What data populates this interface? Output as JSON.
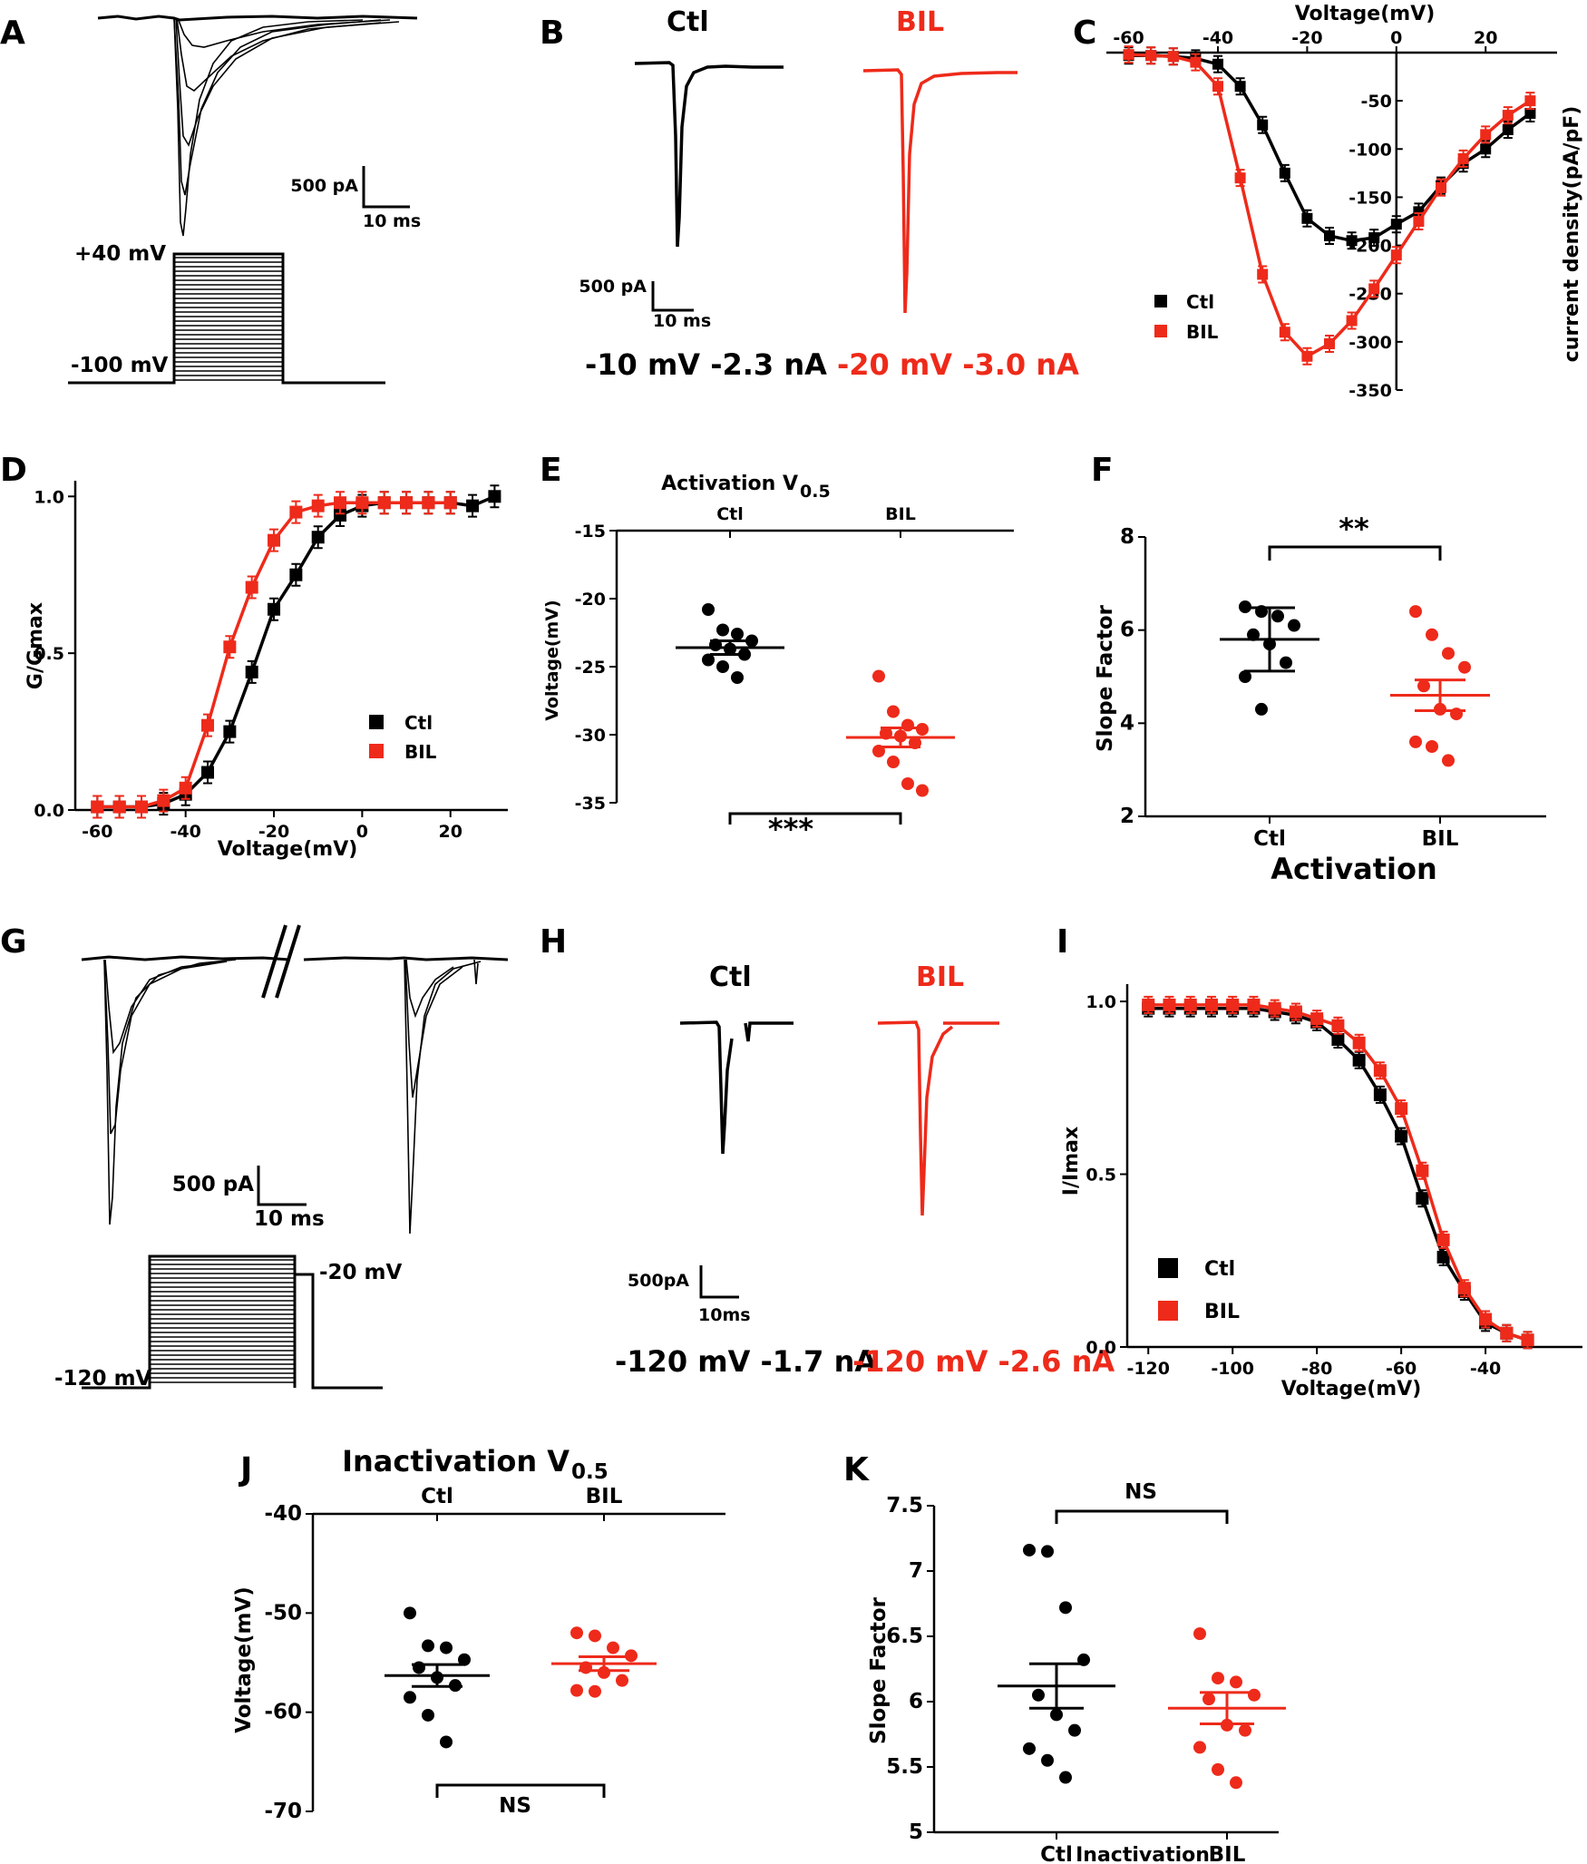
{
  "colors": {
    "ctl": "#000000",
    "bil": "#ee2a1a"
  },
  "labels": {
    "A": "A",
    "B": "B",
    "C": "C",
    "D": "D",
    "E": "E",
    "F": "F",
    "G": "G",
    "H": "H",
    "I": "I",
    "J": "J",
    "K": "K"
  },
  "panelA": {
    "scale_pa": "500 pA",
    "scale_ms": "10 ms",
    "v_high": "+40 mV",
    "v_low": "-100 mV"
  },
  "panelB": {
    "title_ctl": "Ctl",
    "title_bil": "BIL",
    "scale_pa": "500 pA",
    "scale_ms": "10 ms",
    "caption_ctl": "-10 mV -2.3 nA",
    "caption_bil": "-20 mV -3.0 nA"
  },
  "panelG": {
    "scale_pa": "500 pA",
    "scale_ms": "10 ms",
    "v_test": "-20 mV",
    "v_hold": "-120 mV"
  },
  "panelH": {
    "title_ctl": "Ctl",
    "title_bil": "BIL",
    "scale_pa": "500pA",
    "scale_ms": "10ms",
    "caption_ctl": "-120 mV -1.7 nA",
    "caption_bil": "-120 mV -2.6 nA"
  },
  "chart_data": [
    {
      "panel": "C",
      "type": "line",
      "xlabel": "Voltage(mV)",
      "ylabel": "current density(pA/pF)",
      "xlim": [
        -65,
        35
      ],
      "ylim": [
        -350,
        0
      ],
      "xticks": [
        -60,
        -40,
        -20,
        0,
        20
      ],
      "yticks": [
        -50,
        -100,
        -150,
        -200,
        -250,
        -300,
        -350
      ],
      "legend": [
        "Ctl",
        "BIL"
      ],
      "legend_position": "bottom-left",
      "series": [
        {
          "name": "Ctl",
          "x": [
            -60,
            -55,
            -50,
            -45,
            -40,
            -35,
            -30,
            -25,
            -20,
            -15,
            -10,
            -5,
            0,
            5,
            10,
            15,
            20,
            25,
            30
          ],
          "y": [
            -3,
            -3,
            -4,
            -6,
            -12,
            -35,
            -75,
            -125,
            -172,
            -190,
            -195,
            -192,
            -178,
            -165,
            -138,
            -115,
            -100,
            -80,
            -63
          ]
        },
        {
          "name": "BIL",
          "x": [
            -60,
            -55,
            -50,
            -45,
            -40,
            -35,
            -30,
            -25,
            -20,
            -15,
            -10,
            -5,
            0,
            5,
            10,
            15,
            20,
            25,
            30
          ],
          "y": [
            -2,
            -3,
            -4,
            -10,
            -35,
            -130,
            -230,
            -290,
            -315,
            -302,
            -278,
            -245,
            -210,
            -175,
            -140,
            -110,
            -85,
            -65,
            -50
          ]
        }
      ]
    },
    {
      "panel": "D",
      "type": "line",
      "xlabel": "Voltage(mV)",
      "ylabel": "G/Gmax",
      "xlim": [
        -65,
        33
      ],
      "ylim": [
        0,
        1.05
      ],
      "xticks": [
        -60,
        -40,
        -20,
        0,
        20
      ],
      "yticks": [
        0.0,
        0.5,
        1.0
      ],
      "legend": [
        "Ctl",
        "BIL"
      ],
      "legend_position": "bottom-right",
      "series": [
        {
          "name": "Ctl",
          "x": [
            -60,
            -55,
            -50,
            -45,
            -40,
            -35,
            -30,
            -25,
            -20,
            -15,
            -10,
            -5,
            0,
            5,
            10,
            15,
            20,
            25,
            30
          ],
          "y": [
            0.01,
            0.01,
            0.01,
            0.02,
            0.05,
            0.12,
            0.25,
            0.44,
            0.64,
            0.75,
            0.87,
            0.94,
            0.97,
            0.98,
            0.98,
            0.98,
            0.98,
            0.97,
            1.0
          ]
        },
        {
          "name": "BIL",
          "x": [
            -60,
            -55,
            -50,
            -45,
            -40,
            -35,
            -30,
            -25,
            -20,
            -15,
            -10,
            -5,
            0,
            5,
            10,
            15,
            20
          ],
          "y": [
            0.01,
            0.01,
            0.01,
            0.03,
            0.07,
            0.27,
            0.52,
            0.71,
            0.86,
            0.95,
            0.97,
            0.98,
            0.98,
            0.98,
            0.98,
            0.98,
            0.98
          ]
        }
      ]
    },
    {
      "panel": "E",
      "type": "scatter",
      "title": "Activation V",
      "title_sub": "0.5",
      "ylabel": "Voltage(mV)",
      "categories": [
        "Ctl",
        "BIL"
      ],
      "ylim": [
        -35,
        -15
      ],
      "yticks": [
        -15,
        -20,
        -25,
        -30,
        -35
      ],
      "significance": "***",
      "series": [
        {
          "name": "Ctl",
          "values": [
            -20.8,
            -22.3,
            -22.6,
            -23.1,
            -23.4,
            -23.7,
            -24.1,
            -24.5,
            -25.0,
            -25.8
          ],
          "mean": -23.6,
          "sem": 0.5
        },
        {
          "name": "BIL",
          "values": [
            -25.7,
            -28.3,
            -29.3,
            -29.6,
            -29.9,
            -30.1,
            -30.6,
            -31.2,
            -32.0,
            -33.6,
            -34.1
          ],
          "mean": -30.2,
          "sem": 0.7
        }
      ]
    },
    {
      "panel": "F",
      "type": "scatter",
      "ylabel": "Slope Factor",
      "xlabel": "Activation",
      "categories": [
        "Ctl",
        "BIL"
      ],
      "ylim": [
        2,
        8
      ],
      "yticks": [
        2,
        4,
        6,
        8
      ],
      "significance": "**",
      "series": [
        {
          "name": "Ctl",
          "values": [
            6.5,
            6.4,
            6.3,
            6.1,
            5.9,
            5.7,
            5.3,
            5.0,
            4.3
          ],
          "mean": 5.8,
          "sd": 0.68
        },
        {
          "name": "BIL",
          "values": [
            6.4,
            5.9,
            5.5,
            5.2,
            4.8,
            4.3,
            4.2,
            3.6,
            3.5,
            3.2
          ],
          "mean": 4.6,
          "sem": 0.33
        }
      ]
    },
    {
      "panel": "I",
      "type": "line",
      "xlabel": "Voltage(mV)",
      "ylabel": "I/Imax",
      "xlim": [
        -125,
        -17
      ],
      "ylim": [
        0,
        1.05
      ],
      "xticks": [
        -120,
        -100,
        -80,
        -60,
        -40
      ],
      "yticks": [
        0.0,
        0.5,
        1.0
      ],
      "legend": [
        "Ctl",
        "BIL"
      ],
      "legend_position": "bottom-left",
      "series": [
        {
          "name": "Ctl",
          "x": [
            -120,
            -115,
            -110,
            -105,
            -100,
            -95,
            -90,
            -85,
            -80,
            -75,
            -70,
            -65,
            -60,
            -55,
            -50,
            -45,
            -40,
            -35,
            -30
          ],
          "y": [
            0.98,
            0.98,
            0.98,
            0.98,
            0.98,
            0.98,
            0.97,
            0.96,
            0.94,
            0.89,
            0.83,
            0.73,
            0.61,
            0.43,
            0.26,
            0.16,
            0.07,
            0.04,
            0.02
          ]
        },
        {
          "name": "BIL",
          "x": [
            -120,
            -115,
            -110,
            -105,
            -100,
            -95,
            -90,
            -85,
            -80,
            -75,
            -70,
            -65,
            -60,
            -55,
            -50,
            -45,
            -40,
            -35,
            -30
          ],
          "y": [
            0.99,
            0.99,
            0.99,
            0.99,
            0.99,
            0.99,
            0.98,
            0.97,
            0.95,
            0.93,
            0.88,
            0.8,
            0.69,
            0.51,
            0.31,
            0.17,
            0.08,
            0.04,
            0.02
          ]
        }
      ]
    },
    {
      "panel": "J",
      "type": "scatter",
      "title": "Inactivation V",
      "title_sub": "0.5",
      "ylabel": "Voltage(mV)",
      "categories": [
        "Ctl",
        "BIL"
      ],
      "ylim": [
        -70,
        -40
      ],
      "yticks": [
        -40,
        -50,
        -60,
        -70
      ],
      "significance": "NS",
      "series": [
        {
          "name": "Ctl",
          "values": [
            -50.0,
            -53.3,
            -53.5,
            -54.7,
            -55.5,
            -56.5,
            -57.3,
            -58.5,
            -60.3,
            -63.0
          ],
          "mean": -56.3,
          "sem": 1.1
        },
        {
          "name": "BIL",
          "values": [
            -52.0,
            -52.3,
            -53.5,
            -54.3,
            -55.5,
            -56.0,
            -56.8,
            -57.8,
            -57.9
          ],
          "mean": -55.1,
          "sem": 0.7
        }
      ]
    },
    {
      "panel": "K",
      "type": "scatter",
      "ylabel": "Slope Factor",
      "xlabel": "Inactivation",
      "categories": [
        "Ctl",
        "BIL"
      ],
      "ylim": [
        5.0,
        7.5
      ],
      "yticks": [
        5.0,
        5.5,
        6.0,
        6.5,
        7.0,
        7.5
      ],
      "significance": "NS",
      "series": [
        {
          "name": "Ctl",
          "values": [
            7.16,
            7.15,
            6.72,
            6.32,
            6.05,
            5.9,
            5.78,
            5.64,
            5.55,
            5.42
          ],
          "mean": 6.12,
          "sem": 0.17
        },
        {
          "name": "BIL",
          "values": [
            6.52,
            6.18,
            6.15,
            6.05,
            6.02,
            5.82,
            5.78,
            5.65,
            5.48,
            5.38
          ],
          "mean": 5.95,
          "sem": 0.12
        }
      ]
    }
  ]
}
